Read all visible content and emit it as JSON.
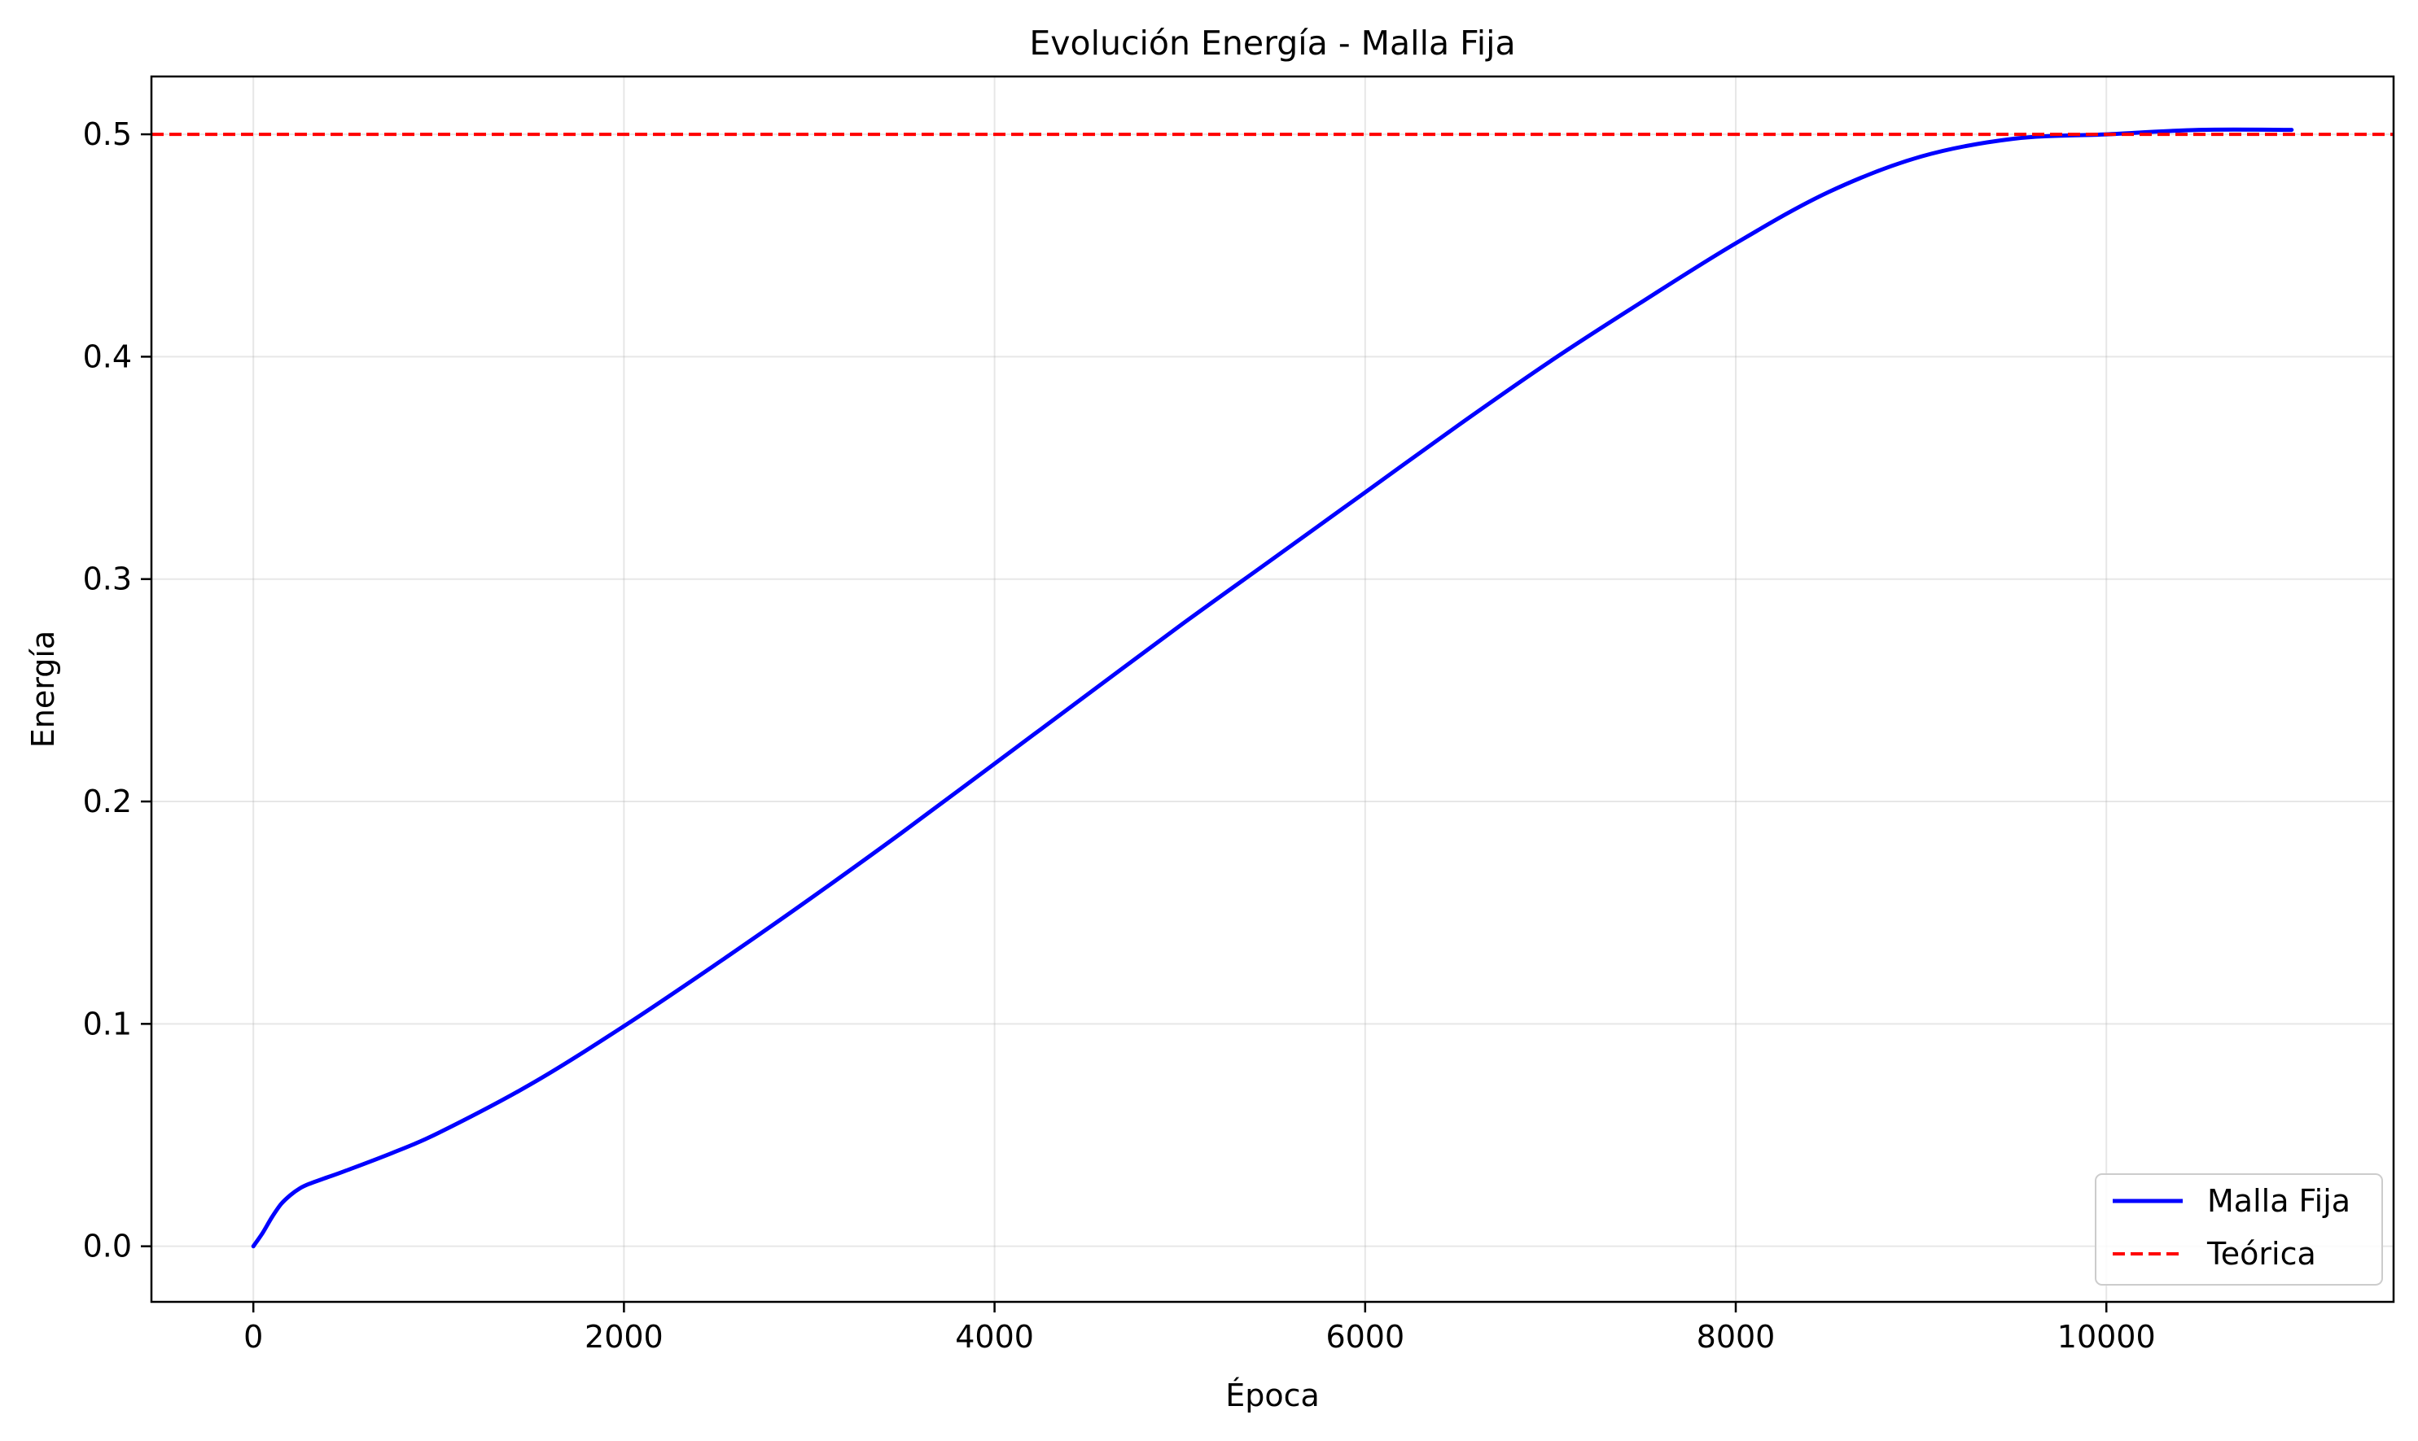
{
  "chart_data": {
    "type": "line",
    "title": "Evolución Energía - Malla Fija",
    "xlabel": "Época",
    "ylabel": "Energía",
    "xlim": [
      -550,
      11550
    ],
    "ylim": [
      -0.025,
      0.526
    ],
    "x_ticks": [
      0,
      2000,
      4000,
      6000,
      8000,
      10000
    ],
    "y_ticks": [
      0.0,
      0.1,
      0.2,
      0.3,
      0.4,
      0.5
    ],
    "x_tick_labels": [
      "0",
      "2000",
      "4000",
      "6000",
      "8000",
      "10000"
    ],
    "y_tick_labels": [
      "0.0",
      "0.1",
      "0.2",
      "0.3",
      "0.4",
      "0.5"
    ],
    "grid": true,
    "legend_position": "lower-right",
    "series": [
      {
        "name": "Malla Fija",
        "color": "#0000ff",
        "style": "solid",
        "x": [
          0,
          50,
          100,
          150,
          200,
          250,
          300,
          400,
          500,
          750,
          1000,
          1500,
          2000,
          2500,
          3000,
          3500,
          4000,
          4500,
          5000,
          5500,
          6000,
          6500,
          7000,
          7500,
          8000,
          8500,
          9000,
          9500,
          10000,
          10500,
          11000
        ],
        "y": [
          0.0,
          0.006,
          0.013,
          0.019,
          0.023,
          0.026,
          0.028,
          0.031,
          0.034,
          0.042,
          0.051,
          0.073,
          0.099,
          0.127,
          0.156,
          0.186,
          0.217,
          0.248,
          0.279,
          0.309,
          0.339,
          0.369,
          0.398,
          0.425,
          0.451,
          0.474,
          0.49,
          0.498,
          0.5,
          0.502,
          0.502
        ]
      },
      {
        "name": "Teórica",
        "color": "#ff0000",
        "style": "dashed",
        "y_constant": 0.5
      }
    ]
  }
}
